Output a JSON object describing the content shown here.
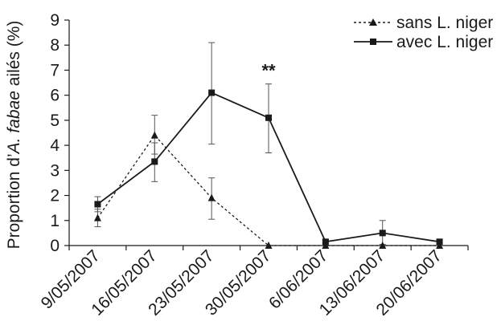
{
  "chart_data": {
    "type": "line",
    "categories": [
      "9/05/2007",
      "16/05/2007",
      "23/05/2007",
      "30/05/2007",
      "6/06/2007",
      "13/06/2007",
      "20/06/2007"
    ],
    "ylim": [
      0,
      9
    ],
    "yticks": [
      0,
      1,
      2,
      3,
      4,
      5,
      6,
      7,
      8,
      9
    ],
    "ylabel_parts": [
      "Proportion d’",
      "A. fabae",
      " ailés (%)"
    ],
    "grid": false,
    "legend_position": "top-right",
    "annotations": [
      {
        "text": "**",
        "category": "30/05/2007",
        "y": 7.0
      }
    ],
    "series": [
      {
        "name": "sans L. niger",
        "marker": "triangle",
        "line": "dotted",
        "color": "#1a1a1a",
        "values": [
          1.1,
          4.4,
          1.9,
          0.0,
          0.0,
          0.0,
          0.0
        ],
        "err_low": [
          0.75,
          3.65,
          1.05,
          0.0,
          0.0,
          0.0,
          0.0
        ],
        "err_high": [
          1.45,
          5.2,
          2.7,
          0.0,
          0.0,
          0.0,
          0.0
        ]
      },
      {
        "name": "avec L. niger",
        "marker": "square",
        "line": "solid",
        "color": "#1a1a1a",
        "values": [
          1.65,
          3.35,
          6.1,
          5.1,
          0.15,
          0.5,
          0.15
        ],
        "err_low": [
          1.35,
          2.55,
          4.05,
          3.7,
          0.0,
          0.05,
          0.0
        ],
        "err_high": [
          1.95,
          4.1,
          8.1,
          6.45,
          0.25,
          1.0,
          0.25
        ]
      }
    ]
  }
}
